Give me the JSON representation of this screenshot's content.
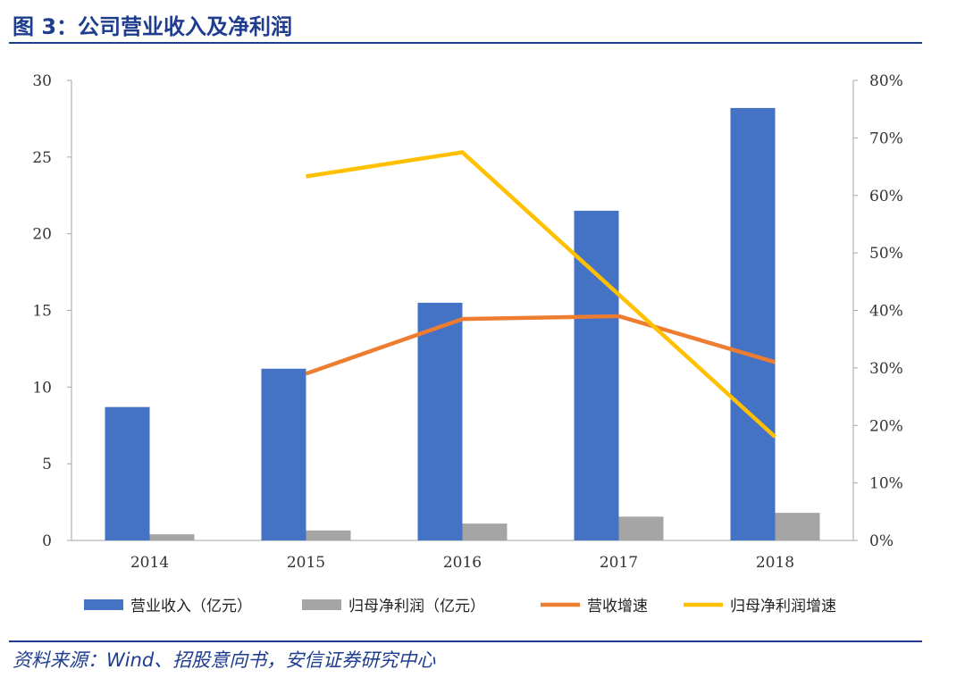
{
  "figure_title": "图 3：公司营业收入及净利润",
  "source_note": "资料来源：Wind、招股意向书，安信证券研究中心",
  "chart_data": {
    "type": "bar",
    "categories": [
      "2014",
      "2015",
      "2016",
      "2017",
      "2018"
    ],
    "left_axis": {
      "min": 0,
      "max": 30,
      "ticks": [
        "0",
        "5",
        "10",
        "15",
        "20",
        "25",
        "30"
      ]
    },
    "right_axis": {
      "min": 0,
      "max": 80,
      "ticks": [
        "0%",
        "10%",
        "20%",
        "30%",
        "40%",
        "50%",
        "60%",
        "70%",
        "80%"
      ]
    },
    "series": [
      {
        "name": "营业收入（亿元）",
        "type": "bar",
        "axis": "left",
        "color": "#4472C4",
        "values": [
          8.7,
          11.2,
          15.5,
          21.5,
          28.2
        ]
      },
      {
        "name": "归母净利润（亿元）",
        "type": "bar",
        "axis": "left",
        "color": "#A5A5A5",
        "values": [
          0.4,
          0.65,
          1.1,
          1.55,
          1.8
        ]
      },
      {
        "name": "营收增速",
        "type": "line",
        "axis": "right",
        "color": "#ED7D31",
        "values": [
          null,
          29,
          38.5,
          39,
          31
        ]
      },
      {
        "name": "归母净利润增速",
        "type": "line",
        "axis": "right",
        "color": "#FFC000",
        "values": [
          null,
          63.3,
          67.5,
          null,
          18
        ]
      }
    ],
    "grid": false,
    "legend": "bottom"
  }
}
